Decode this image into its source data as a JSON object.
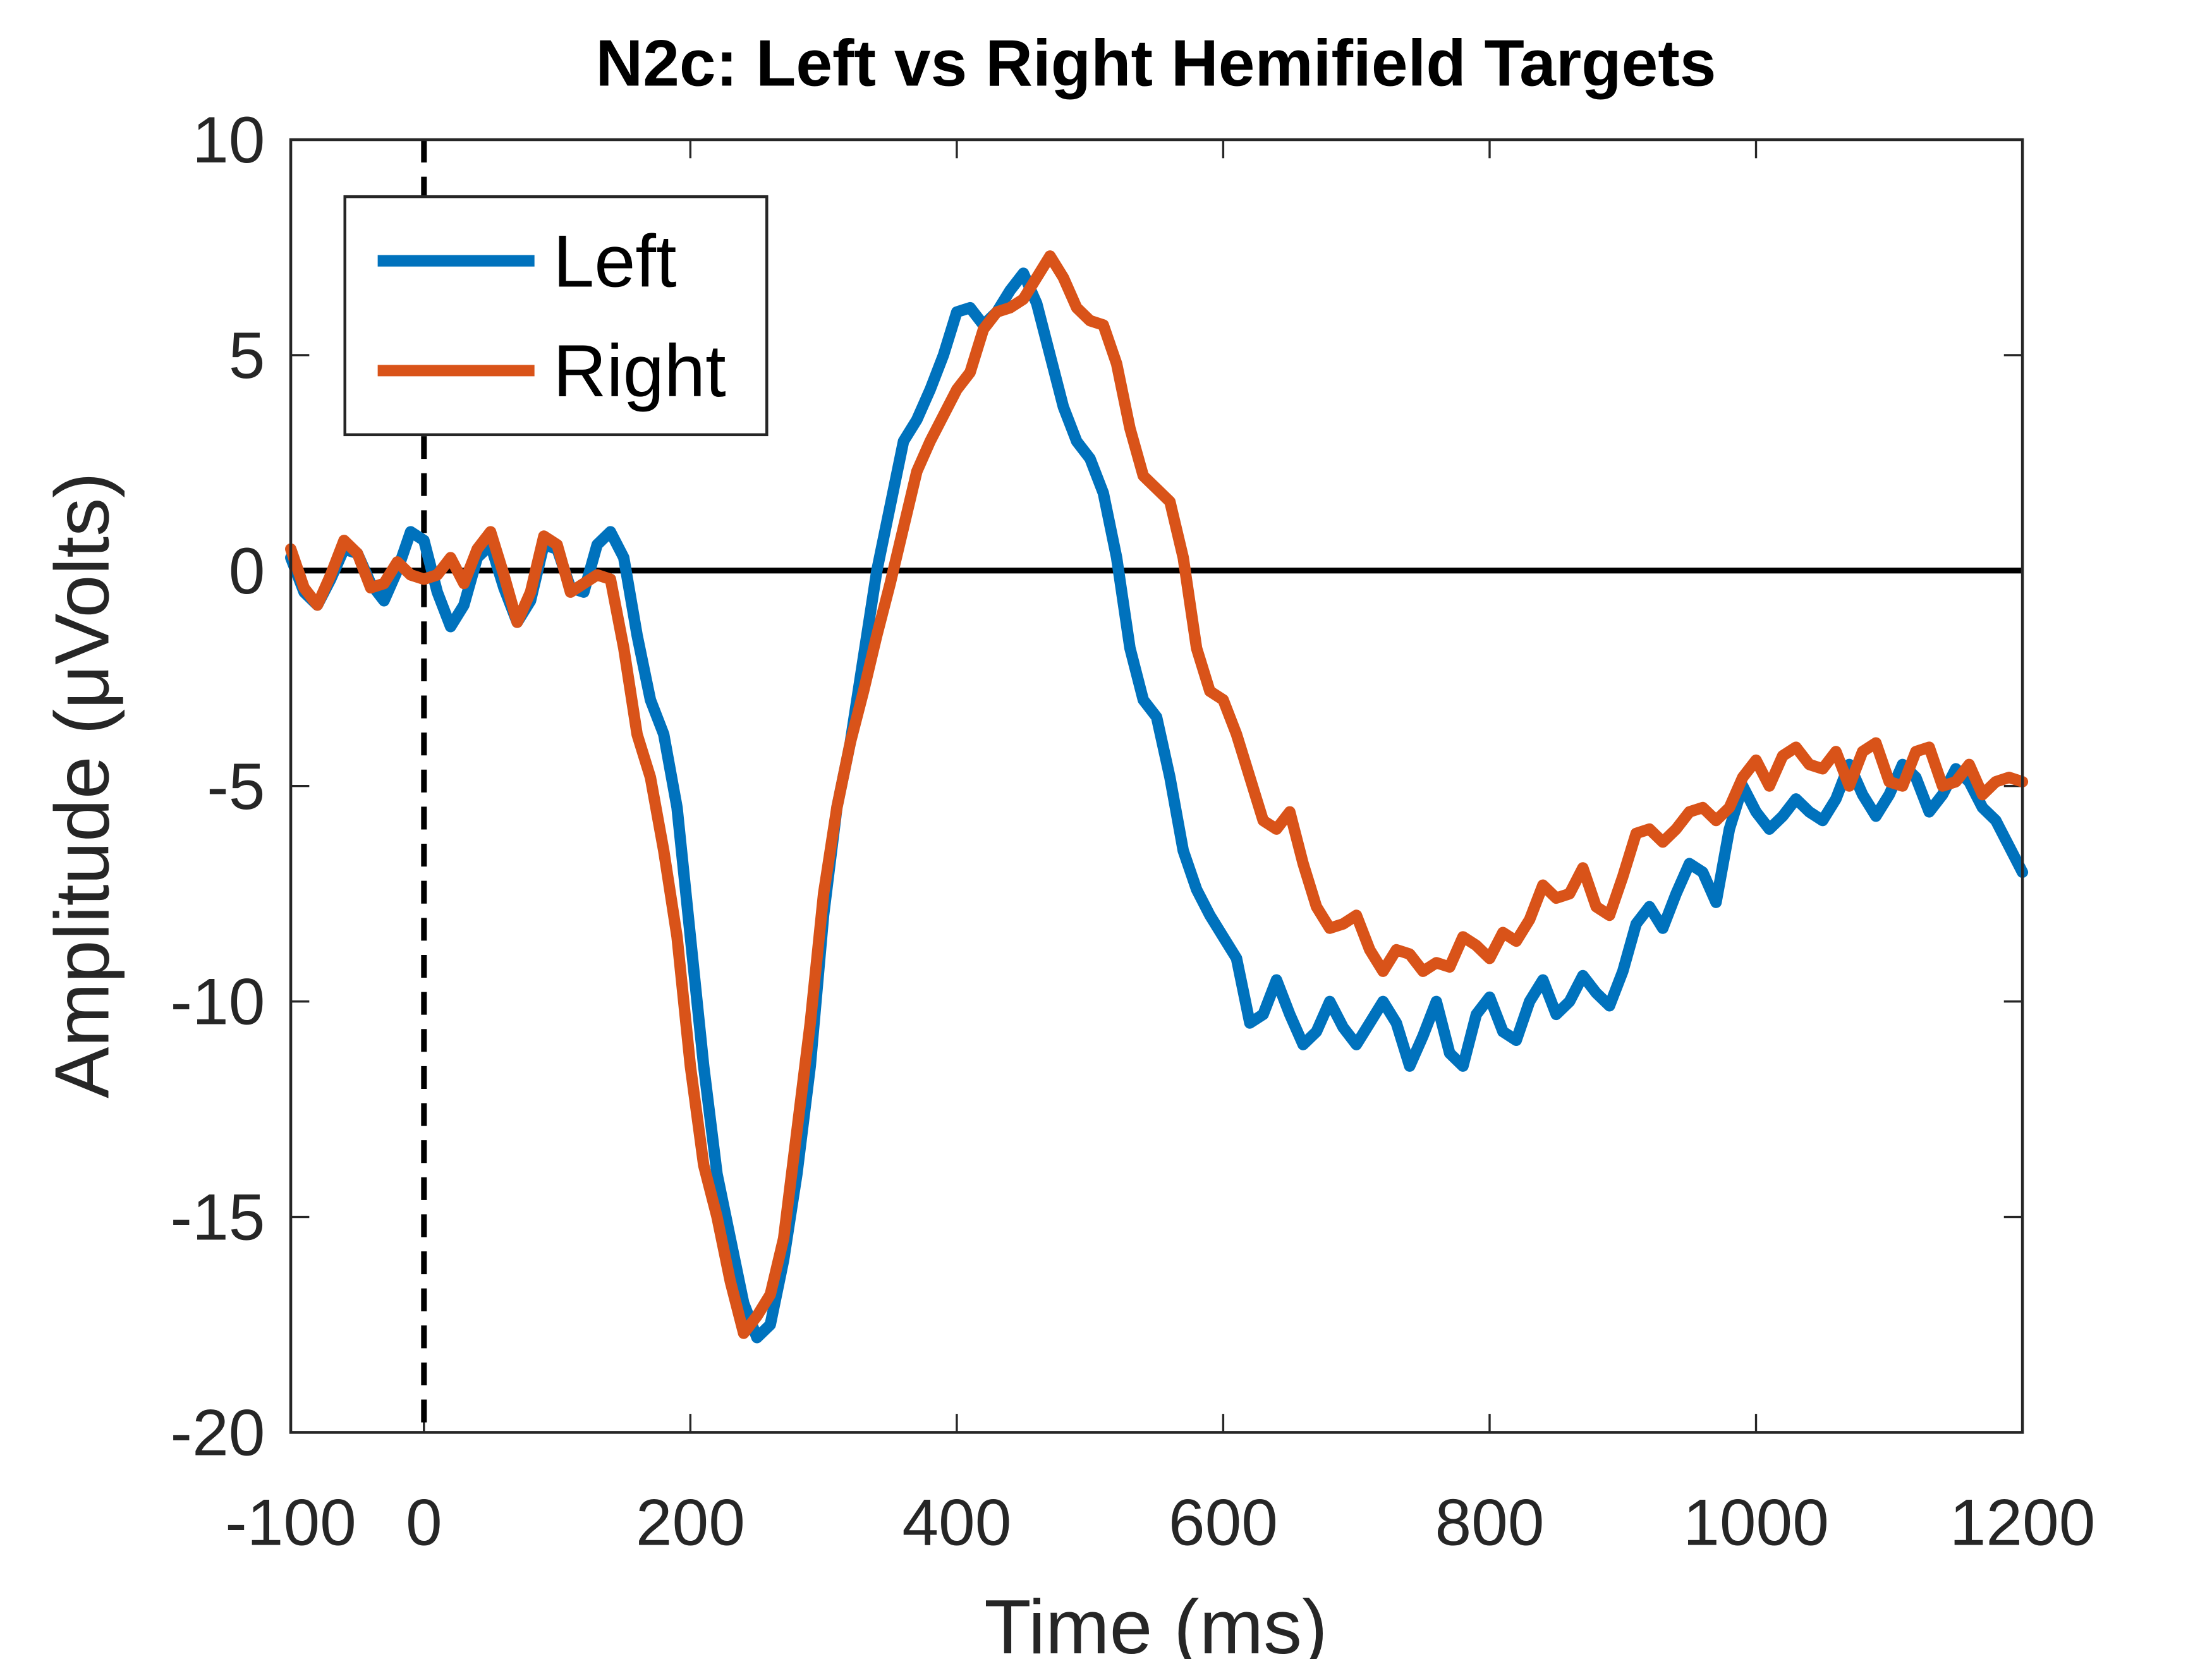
{
  "chart_data": {
    "type": "line",
    "title": "N2c: Left vs Right Hemifield Targets",
    "xlabel": "Time (ms)",
    "ylabel": "Amplitude (μVolts)",
    "xlim": [
      -100,
      1200
    ],
    "ylim": [
      -20,
      10
    ],
    "xticks": [
      -100,
      0,
      200,
      400,
      600,
      800,
      1000,
      1200
    ],
    "yticks": [
      -20,
      -15,
      -10,
      -5,
      0,
      5,
      10
    ],
    "hline": 0,
    "vline": 0,
    "grid": false,
    "legend": "northwest",
    "x": [
      -100,
      -90,
      -80,
      -70,
      -60,
      -50,
      -40,
      -30,
      -20,
      -10,
      0,
      10,
      20,
      30,
      40,
      50,
      60,
      70,
      80,
      90,
      100,
      110,
      120,
      130,
      140,
      150,
      160,
      170,
      180,
      190,
      200,
      210,
      220,
      230,
      240,
      250,
      260,
      270,
      280,
      290,
      300,
      310,
      320,
      330,
      340,
      350,
      360,
      370,
      380,
      390,
      400,
      410,
      420,
      430,
      440,
      450,
      460,
      470,
      480,
      490,
      500,
      510,
      520,
      530,
      540,
      550,
      560,
      570,
      580,
      590,
      600,
      610,
      620,
      630,
      640,
      650,
      660,
      670,
      680,
      690,
      700,
      710,
      720,
      730,
      740,
      750,
      760,
      770,
      780,
      790,
      800,
      810,
      820,
      830,
      840,
      850,
      860,
      870,
      880,
      890,
      900,
      910,
      920,
      930,
      940,
      950,
      960,
      970,
      980,
      990,
      1000,
      1010,
      1020,
      1030,
      1040,
      1050,
      1060,
      1070,
      1080,
      1090,
      1100,
      1110,
      1120,
      1130,
      1140,
      1150,
      1160,
      1170,
      1180,
      1190,
      1200
    ],
    "series": [
      {
        "name": "Left",
        "color": "#0072bd",
        "values": [
          0.3,
          -0.5,
          -0.8,
          -0.2,
          0.5,
          0.4,
          -0.3,
          -0.7,
          0.0,
          0.9,
          0.7,
          -0.5,
          -1.3,
          -0.8,
          0.3,
          0.6,
          -0.4,
          -1.2,
          -0.7,
          0.6,
          0.5,
          -0.4,
          -0.5,
          0.6,
          0.9,
          0.3,
          -1.5,
          -3.0,
          -3.8,
          -5.5,
          -8.5,
          -11.5,
          -14.0,
          -15.5,
          -17.0,
          -17.8,
          -17.5,
          -16.0,
          -14.0,
          -11.5,
          -8.0,
          -5.5,
          -4.0,
          -2.0,
          0.0,
          1.5,
          3.0,
          3.5,
          4.2,
          5.0,
          6.0,
          6.1,
          5.7,
          6.0,
          6.5,
          6.9,
          6.2,
          5.0,
          3.8,
          3.0,
          2.6,
          1.8,
          0.3,
          -1.8,
          -3.0,
          -3.4,
          -4.8,
          -6.5,
          -7.4,
          -8.0,
          -8.5,
          -9.0,
          -10.5,
          -10.3,
          -9.5,
          -10.3,
          -11.0,
          -10.7,
          -10.0,
          -10.6,
          -11.0,
          -10.5,
          -10.0,
          -10.5,
          -11.5,
          -10.8,
          -10.0,
          -11.2,
          -11.5,
          -10.3,
          -9.9,
          -10.7,
          -10.9,
          -10.0,
          -9.5,
          -10.3,
          -10.0,
          -9.4,
          -9.8,
          -10.1,
          -9.3,
          -8.2,
          -7.8,
          -8.3,
          -7.5,
          -6.8,
          -7.0,
          -7.7,
          -6.0,
          -5.0,
          -5.6,
          -6.0,
          -5.7,
          -5.3,
          -5.6,
          -5.8,
          -5.3,
          -4.5,
          -5.2,
          -5.7,
          -5.2,
          -4.5,
          -4.8,
          -5.6,
          -5.2,
          -4.6,
          -4.9,
          -5.5,
          -5.8,
          -6.4,
          -7.0
        ]
      },
      {
        "name": "Right",
        "color": "#d95319",
        "values": [
          0.5,
          -0.4,
          -0.8,
          -0.1,
          0.7,
          0.4,
          -0.4,
          -0.3,
          0.2,
          -0.1,
          -0.2,
          -0.1,
          0.3,
          -0.3,
          0.5,
          0.9,
          -0.1,
          -1.2,
          -0.5,
          0.8,
          0.6,
          -0.5,
          -0.3,
          -0.1,
          -0.2,
          -1.8,
          -3.8,
          -4.8,
          -6.5,
          -8.5,
          -11.5,
          -13.8,
          -15.0,
          -16.5,
          -17.7,
          -17.3,
          -16.8,
          -15.5,
          -13.0,
          -10.5,
          -7.5,
          -5.5,
          -4.0,
          -2.8,
          -1.5,
          -0.3,
          1.0,
          2.3,
          3.0,
          3.6,
          4.2,
          4.6,
          5.6,
          6.0,
          6.1,
          6.3,
          6.8,
          7.3,
          6.8,
          6.1,
          5.8,
          5.7,
          4.8,
          3.3,
          2.2,
          1.9,
          1.6,
          0.3,
          -1.8,
          -2.8,
          -3.0,
          -3.8,
          -4.8,
          -5.8,
          -6.0,
          -5.6,
          -6.8,
          -7.8,
          -8.3,
          -8.2,
          -8.0,
          -8.8,
          -9.3,
          -8.8,
          -8.9,
          -9.3,
          -9.1,
          -9.2,
          -8.5,
          -8.7,
          -9.0,
          -8.4,
          -8.6,
          -8.1,
          -7.3,
          -7.6,
          -7.5,
          -6.9,
          -7.8,
          -8.0,
          -7.1,
          -6.1,
          -6.0,
          -6.3,
          -6.0,
          -5.6,
          -5.5,
          -5.8,
          -5.5,
          -4.8,
          -4.4,
          -5.0,
          -4.3,
          -4.1,
          -4.5,
          -4.6,
          -4.2,
          -5.0,
          -4.2,
          -4.0,
          -4.9,
          -5.0,
          -4.2,
          -4.1,
          -5.0,
          -4.9,
          -4.5,
          -5.2,
          -4.9,
          -4.8,
          -4.9
        ]
      }
    ]
  }
}
